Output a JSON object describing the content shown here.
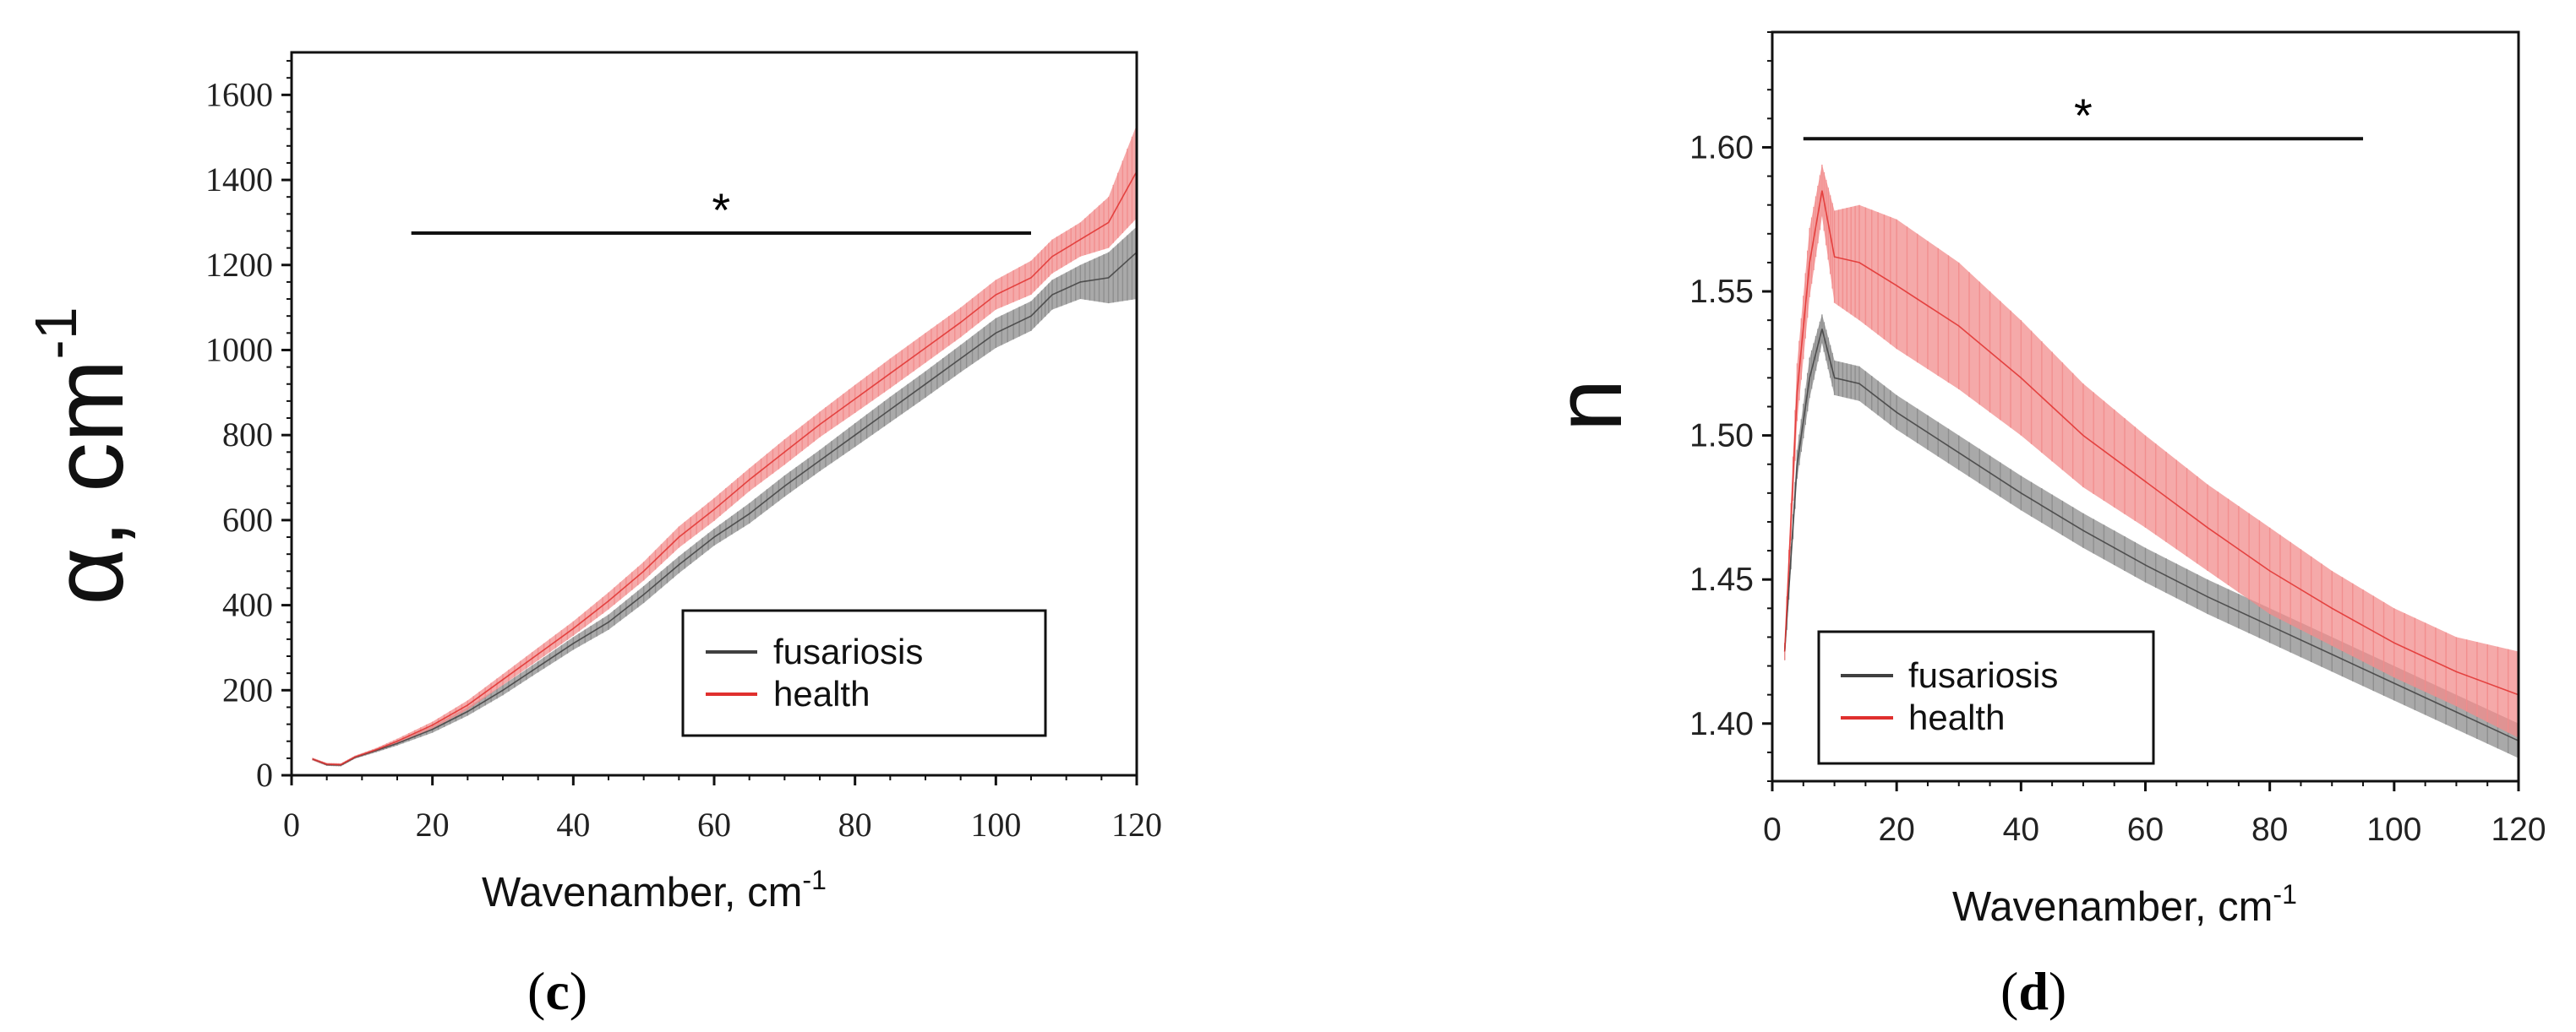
{
  "chart_data": [
    {
      "type": "line",
      "panel": "c",
      "panel_label": "(c)",
      "panel_label_open": "(",
      "panel_label_letter": "c",
      "panel_label_close": ")",
      "xlabel": "Wavenamber, cm",
      "xlabel_sup": "-1",
      "ylabel": "α, cm",
      "ylabel_sup": "-1",
      "xlim": [
        0,
        120
      ],
      "ylim": [
        0,
        1700
      ],
      "xticks": [
        0,
        20,
        40,
        60,
        80,
        100,
        120
      ],
      "yticks": [
        0,
        200,
        400,
        600,
        800,
        1000,
        1200,
        1400,
        1600
      ],
      "significance": {
        "marker": "*",
        "x_start": 17,
        "x_end": 105,
        "y": 1275
      },
      "legend": {
        "position": "bottom-right",
        "entries": [
          "fusariosis",
          "health"
        ]
      },
      "x": [
        3,
        5,
        7,
        9,
        12,
        15,
        20,
        25,
        30,
        35,
        40,
        45,
        50,
        55,
        60,
        65,
        70,
        75,
        80,
        85,
        90,
        95,
        100,
        105,
        108,
        112,
        116,
        120
      ],
      "series": [
        {
          "name": "fusariosis",
          "color": "#404040",
          "band_color": "#8c8c8c",
          "values": [
            38,
            25,
            24,
            42,
            58,
            75,
            108,
            150,
            200,
            255,
            310,
            360,
            425,
            495,
            560,
            615,
            680,
            740,
            800,
            860,
            920,
            980,
            1040,
            1080,
            1130,
            1160,
            1170,
            1230
          ],
          "upper": [
            40,
            28,
            27,
            45,
            62,
            80,
            115,
            160,
            212,
            268,
            325,
            378,
            445,
            515,
            580,
            640,
            705,
            765,
            828,
            890,
            950,
            1012,
            1075,
            1115,
            1165,
            1200,
            1230,
            1290
          ],
          "lower": [
            35,
            22,
            21,
            39,
            54,
            70,
            100,
            140,
            188,
            242,
            295,
            342,
            405,
            475,
            540,
            592,
            655,
            715,
            772,
            830,
            888,
            948,
            1005,
            1045,
            1095,
            1120,
            1110,
            1120
          ]
        },
        {
          "name": "health",
          "color": "#e0302e",
          "band_color": "#f28c8c",
          "values": [
            38,
            26,
            25,
            43,
            60,
            80,
            118,
            165,
            225,
            285,
            345,
            410,
            480,
            560,
            625,
            695,
            760,
            825,
            885,
            945,
            1005,
            1065,
            1130,
            1170,
            1220,
            1260,
            1300,
            1420
          ],
          "upper": [
            41,
            29,
            28,
            46,
            64,
            86,
            126,
            176,
            238,
            300,
            362,
            430,
            502,
            585,
            652,
            722,
            790,
            855,
            918,
            980,
            1040,
            1100,
            1165,
            1210,
            1260,
            1300,
            1360,
            1530
          ],
          "lower": [
            35,
            23,
            22,
            40,
            56,
            74,
            110,
            154,
            212,
            270,
            328,
            390,
            458,
            535,
            598,
            668,
            730,
            795,
            852,
            910,
            970,
            1030,
            1095,
            1130,
            1180,
            1220,
            1240,
            1310
          ]
        }
      ]
    },
    {
      "type": "line",
      "panel": "d",
      "panel_label": "(d)",
      "panel_label_open": "(",
      "panel_label_letter": "d",
      "panel_label_close": ")",
      "xlabel": "Wavenamber, cm",
      "xlabel_sup": "-1",
      "ylabel": "n",
      "xlim": [
        0,
        120
      ],
      "ylim": [
        1.38,
        1.64
      ],
      "xticks": [
        0,
        20,
        40,
        60,
        80,
        100,
        120
      ],
      "yticks": [
        1.4,
        1.45,
        1.5,
        1.55,
        1.6
      ],
      "ytick_labels": [
        "1.40",
        "1.45",
        "1.50",
        "1.55",
        "1.60"
      ],
      "significance": {
        "marker": "*",
        "x_start": 5,
        "x_end": 95,
        "y": 1.603
      },
      "legend": {
        "position": "bottom-left",
        "entries": [
          "fusariosis",
          "health"
        ]
      },
      "x": [
        2,
        4,
        6,
        8,
        10,
        14,
        20,
        30,
        40,
        50,
        60,
        70,
        80,
        90,
        100,
        110,
        120
      ],
      "series": [
        {
          "name": "fusariosis",
          "color": "#404040",
          "band_color": "#8c8c8c",
          "values": [
            1.425,
            1.49,
            1.52,
            1.537,
            1.52,
            1.518,
            1.508,
            1.494,
            1.48,
            1.467,
            1.455,
            1.444,
            1.434,
            1.424,
            1.414,
            1.404,
            1.394
          ],
          "upper": [
            1.428,
            1.495,
            1.527,
            1.542,
            1.526,
            1.524,
            1.514,
            1.5,
            1.486,
            1.473,
            1.461,
            1.45,
            1.44,
            1.43,
            1.42,
            1.41,
            1.4
          ],
          "lower": [
            1.422,
            1.485,
            1.513,
            1.532,
            1.514,
            1.512,
            1.502,
            1.488,
            1.474,
            1.461,
            1.449,
            1.438,
            1.428,
            1.418,
            1.408,
            1.398,
            1.388
          ]
        },
        {
          "name": "health",
          "color": "#e0302e",
          "band_color": "#f28c8c",
          "values": [
            1.425,
            1.515,
            1.56,
            1.585,
            1.562,
            1.56,
            1.552,
            1.538,
            1.52,
            1.5,
            1.484,
            1.468,
            1.453,
            1.44,
            1.428,
            1.418,
            1.41
          ],
          "upper": [
            1.428,
            1.525,
            1.572,
            1.594,
            1.578,
            1.58,
            1.575,
            1.56,
            1.54,
            1.518,
            1.5,
            1.483,
            1.468,
            1.453,
            1.44,
            1.43,
            1.425
          ],
          "lower": [
            1.422,
            1.505,
            1.548,
            1.576,
            1.546,
            1.54,
            1.53,
            1.516,
            1.5,
            1.482,
            1.468,
            1.453,
            1.438,
            1.427,
            1.416,
            1.406,
            1.395
          ]
        }
      ]
    }
  ]
}
